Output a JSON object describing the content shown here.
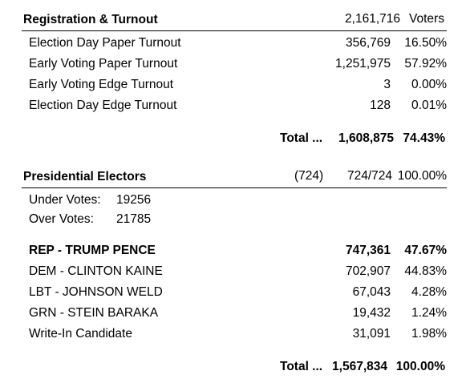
{
  "registration": {
    "title": "Registration & Turnout",
    "registered": "2,161,716",
    "registered_label": "Voters",
    "rows": [
      {
        "label": "Election Day Paper Turnout",
        "count": "356,769",
        "pct": "16.50%"
      },
      {
        "label": "Early Voting Paper Turnout",
        "count": "1,251,975",
        "pct": "57.92%"
      },
      {
        "label": "Early Voting Edge Turnout",
        "count": "3",
        "pct": "0.00%"
      },
      {
        "label": "Election Day Edge  Turnout",
        "count": "128",
        "pct": "0.01%"
      }
    ],
    "total_label": "Total ...",
    "total_count": "1,608,875",
    "total_pct": "74.43%"
  },
  "presidential": {
    "title": "Presidential Electors",
    "precincts_paren": "(724)",
    "precincts_reported": "724/724",
    "precincts_pct": "100.00%",
    "under_votes_label": "Under Votes:",
    "under_votes": "19256",
    "over_votes_label": "Over Votes:",
    "over_votes": "21785",
    "candidates": [
      {
        "label": "REP - TRUMP PENCE",
        "votes": "747,361",
        "pct": "47.67%",
        "bold": true
      },
      {
        "label": "DEM - CLINTON KAINE",
        "votes": "702,907",
        "pct": "44.83%",
        "bold": false
      },
      {
        "label": "LBT - JOHNSON WELD",
        "votes": "67,043",
        "pct": "4.28%",
        "bold": false
      },
      {
        "label": "GRN - STEIN BARAKA",
        "votes": "19,432",
        "pct": "1.24%",
        "bold": false
      },
      {
        "label": "Write-In Candidate",
        "votes": "31,091",
        "pct": "1.98%",
        "bold": false
      }
    ],
    "total_label": "Total ...",
    "total_votes": "1,567,834",
    "total_pct": "100.00%"
  }
}
